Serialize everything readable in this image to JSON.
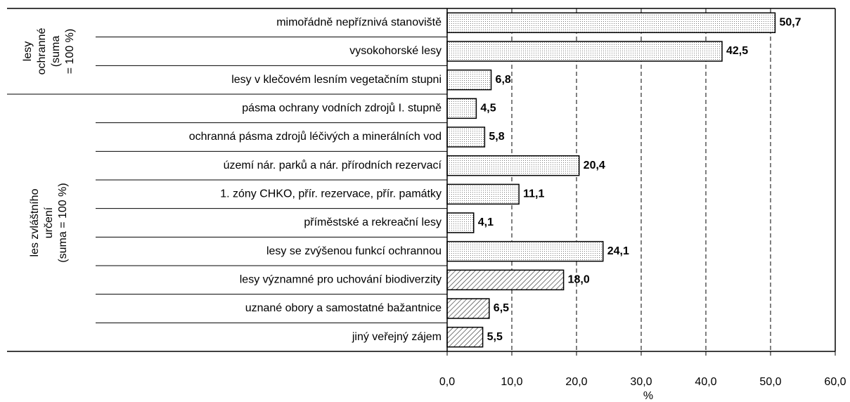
{
  "chart_data": {
    "type": "bar",
    "groups": [
      {
        "label_lines": [
          "lesy",
          "ochranné",
          "(suma",
          "= 100 %)"
        ],
        "categories": [
          "mimořádně nepříznivá stanoviště",
          "vysokohorské lesy",
          "lesy v klečovém lesním vegetačním stupni"
        ],
        "values": [
          50.7,
          42.5,
          6.8
        ],
        "value_labels": [
          "50,7",
          "42,5",
          "6,8"
        ],
        "patterns": [
          "dots",
          "dots",
          "dots"
        ]
      },
      {
        "label_lines": [
          "les zvláštního",
          "určení",
          "(suma = 100 %)"
        ],
        "categories": [
          "pásma ochrany vodních zdrojů I. stupně",
          "ochranná pásma zdrojů léčivých a minerálních vod",
          "území nár. parků a nár. přírodních rezervací",
          "1. zóny CHKO, přír. rezervace, přír. památky",
          "příměstské a rekreační lesy",
          "lesy se zvýšenou funkcí ochrannou",
          "lesy významné pro uchování biodiverzity",
          "uznané obory a samostatné bažantnice",
          "jiný veřejný zájem"
        ],
        "values": [
          4.5,
          5.8,
          20.4,
          11.1,
          4.1,
          24.1,
          18.0,
          6.5,
          5.5
        ],
        "value_labels": [
          "4,5",
          "5,8",
          "20,4",
          "11,1",
          "4,1",
          "24,1",
          "18,0",
          "6,5",
          "5,5"
        ],
        "patterns": [
          "dots",
          "dots",
          "dots",
          "dots",
          "dots",
          "dots",
          "hatch",
          "hatch",
          "hatch"
        ]
      }
    ],
    "xlabel": "%",
    "xlim": [
      0,
      60
    ],
    "xticks": [
      {
        "value": 0,
        "label": "0,0"
      },
      {
        "value": 10,
        "label": "10,0"
      },
      {
        "value": 20,
        "label": "20,0"
      },
      {
        "value": 30,
        "label": "30,0"
      },
      {
        "value": 40,
        "label": "40,0"
      },
      {
        "value": 50,
        "label": "50,0"
      },
      {
        "value": 60,
        "label": "60,0"
      }
    ],
    "grid": true
  }
}
